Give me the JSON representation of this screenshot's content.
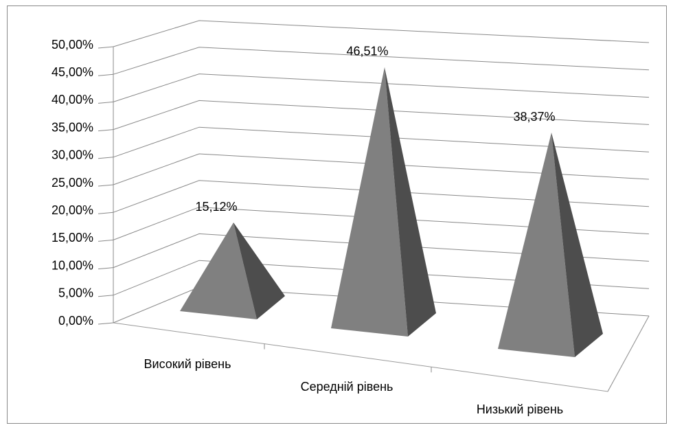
{
  "chart_data": {
    "type": "pyramid",
    "categories": [
      "Високий рівень",
      "Середній рівень",
      "Низький рівень"
    ],
    "values": [
      15.12,
      46.51,
      38.37
    ],
    "value_labels": [
      "15,12%",
      "46,51%",
      "38,37%"
    ],
    "color": "#808080",
    "ylim": [
      0,
      50
    ],
    "yticks": [
      {
        "value": 0,
        "label": "0,00%"
      },
      {
        "value": 5,
        "label": "5,00%"
      },
      {
        "value": 10,
        "label": "10,00%"
      },
      {
        "value": 15,
        "label": "15,00%"
      },
      {
        "value": 20,
        "label": "20,00%"
      },
      {
        "value": 25,
        "label": "25,00%"
      },
      {
        "value": 30,
        "label": "30,00%"
      },
      {
        "value": 35,
        "label": "35,00%"
      },
      {
        "value": 40,
        "label": "40,00%"
      },
      {
        "value": 45,
        "label": "45,00%"
      },
      {
        "value": 50,
        "label": "50,00%"
      }
    ],
    "grid": true
  }
}
